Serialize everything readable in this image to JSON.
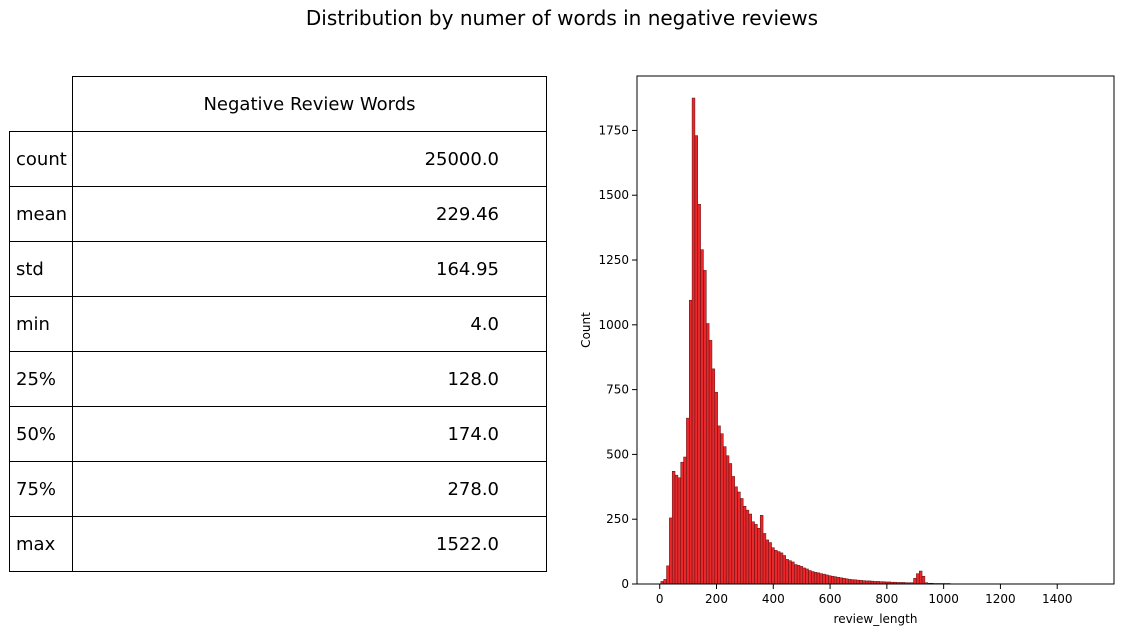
{
  "title": "Distribution by numer of words in negative reviews",
  "table": {
    "column_header": "Negative Review Words",
    "rows": [
      {
        "label": "count",
        "value": "25000.0"
      },
      {
        "label": "mean",
        "value": "229.46"
      },
      {
        "label": "std",
        "value": "164.95"
      },
      {
        "label": "min",
        "value": "4.0"
      },
      {
        "label": "25%",
        "value": "128.0"
      },
      {
        "label": "50%",
        "value": "174.0"
      },
      {
        "label": "75%",
        "value": "278.0"
      },
      {
        "label": "max",
        "value": "1522.0"
      }
    ]
  },
  "colors": {
    "bar_fill": "#e8282b",
    "bar_edge": "#5a1010",
    "axis": "#000000"
  },
  "chart_data": {
    "type": "bar",
    "xlabel": "review_length",
    "ylabel": "Count",
    "xlim": [
      -80,
      1600
    ],
    "ylim": [
      0,
      1960
    ],
    "xticks": [
      0,
      200,
      400,
      600,
      800,
      1000,
      1200,
      1400
    ],
    "yticks": [
      0,
      250,
      500,
      750,
      1000,
      1250,
      1500,
      1750
    ],
    "bin_width": 10,
    "bin_start": 4,
    "values": [
      10,
      18,
      70,
      255,
      435,
      420,
      410,
      470,
      490,
      640,
      1095,
      1875,
      1730,
      1465,
      1290,
      1210,
      1005,
      940,
      830,
      740,
      610,
      580,
      530,
      495,
      465,
      415,
      375,
      355,
      330,
      300,
      285,
      270,
      240,
      230,
      215,
      265,
      195,
      170,
      160,
      140,
      130,
      125,
      120,
      110,
      95,
      90,
      85,
      75,
      72,
      68,
      62,
      58,
      52,
      48,
      45,
      43,
      40,
      38,
      35,
      32,
      30,
      28,
      26,
      24,
      22,
      20,
      18,
      17,
      16,
      15,
      14,
      13,
      12,
      12,
      11,
      10,
      10,
      9,
      9,
      8,
      8,
      7,
      7,
      6,
      6,
      6,
      5,
      5,
      5,
      22,
      40,
      50,
      30,
      5,
      3,
      3,
      2,
      2,
      2,
      2,
      2,
      2,
      1,
      1,
      1,
      1,
      1,
      1,
      1,
      1,
      1,
      1,
      1,
      1,
      1,
      1,
      1,
      1,
      1,
      1,
      1,
      1,
      1,
      1,
      1,
      1,
      1,
      1,
      1,
      1,
      1,
      1,
      1,
      1,
      1,
      1,
      1,
      1,
      1,
      1,
      1,
      1,
      1,
      1,
      1,
      1,
      1
    ]
  }
}
